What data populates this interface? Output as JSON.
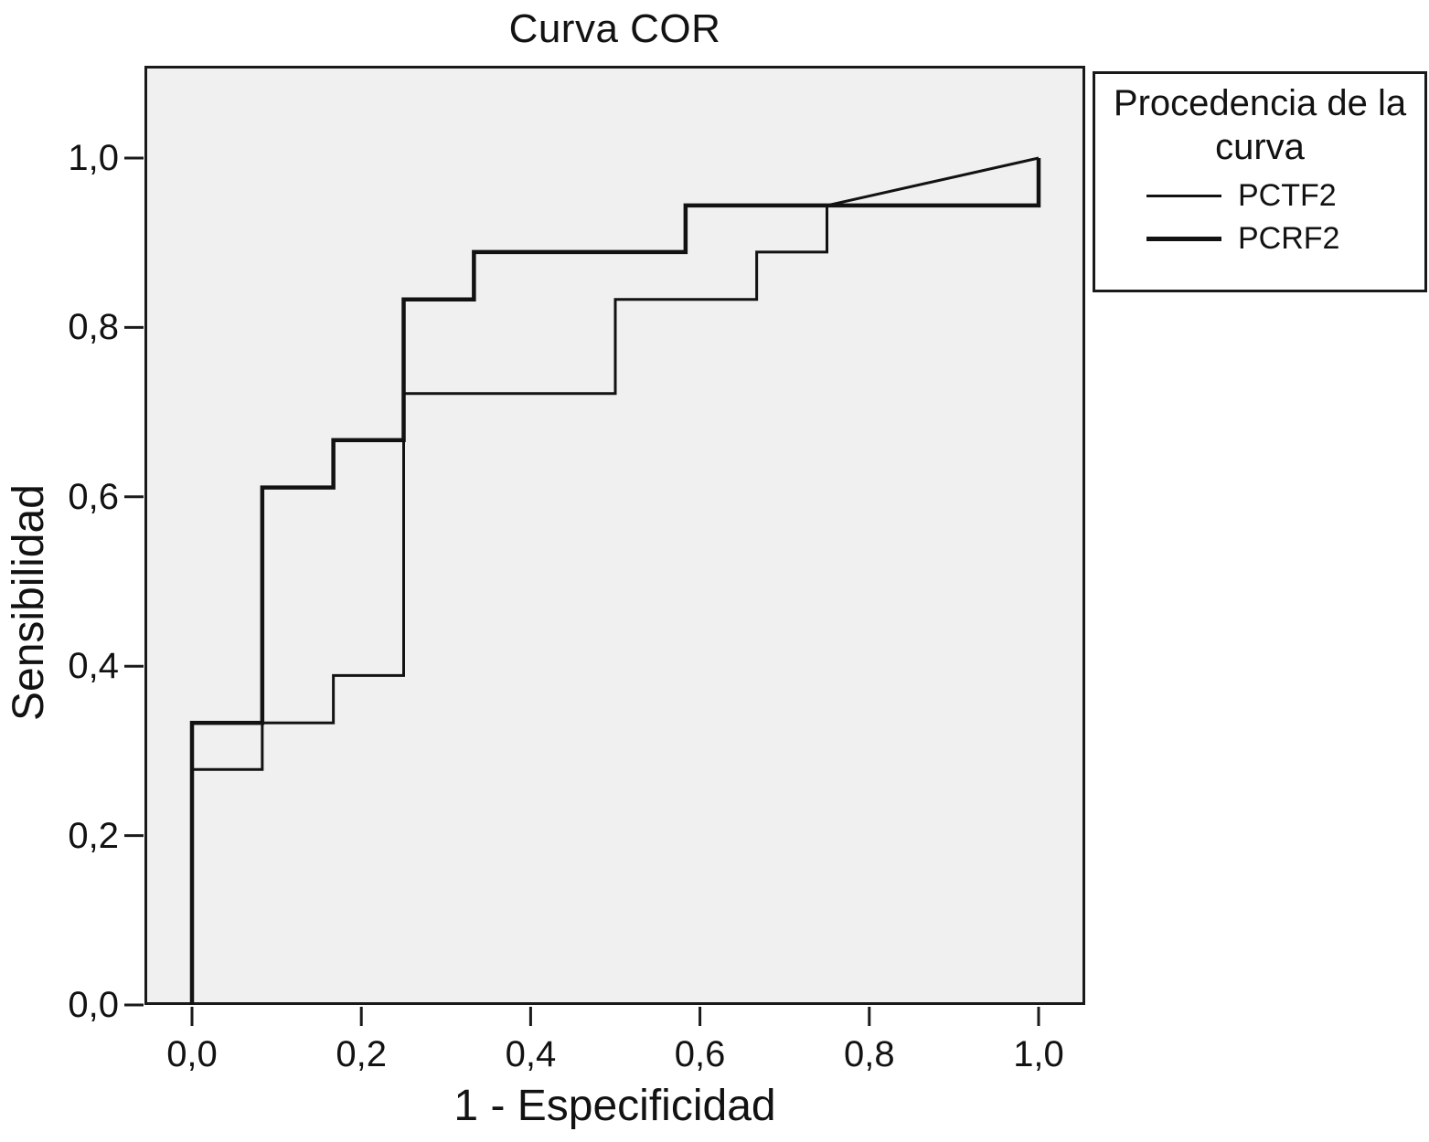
{
  "title": "Curva COR",
  "colors": {
    "line": "#121212",
    "frame": "#1a1a1a",
    "plot_background": "#f0f0f0",
    "page_background": "#ffffff",
    "text": "#121212"
  },
  "axes": {
    "x": {
      "title": "1 - Especificidad",
      "tick_labels": [
        "0,0",
        "0,2",
        "0,4",
        "0,6",
        "0,8",
        "1,0"
      ]
    },
    "y": {
      "title": "Sensibilidad",
      "tick_labels": [
        "0,0",
        "0,2",
        "0,4",
        "0,6",
        "0,8",
        "1,0"
      ]
    }
  },
  "legend": {
    "title_line1": "Procedencia de la",
    "title_line2": "curva",
    "entries": [
      {
        "label": "PCTF2",
        "weight": "thin"
      },
      {
        "label": "PCRF2",
        "weight": "thick"
      }
    ]
  },
  "chart_data": {
    "type": "line",
    "subtype": "roc-step-curves",
    "title": "Curva COR",
    "xlabel": "1 - Especificidad",
    "ylabel": "Sensibilidad",
    "xlim": [
      0,
      1
    ],
    "ylim": [
      0,
      1
    ],
    "x_ticks": [
      0.0,
      0.2,
      0.4,
      0.6,
      0.8,
      1.0
    ],
    "y_ticks": [
      0.0,
      0.2,
      0.4,
      0.6,
      0.8,
      1.0
    ],
    "grid": false,
    "legend_title": "Procedencia de la curva",
    "legend_position": "outside-top-right",
    "series": [
      {
        "name": "PCTF2",
        "weight": "thin",
        "points": [
          [
            0,
            0
          ],
          [
            0,
            0.278
          ],
          [
            0.083,
            0.278
          ],
          [
            0.083,
            0.333
          ],
          [
            0.167,
            0.333
          ],
          [
            0.167,
            0.389
          ],
          [
            0.25,
            0.389
          ],
          [
            0.25,
            0.722
          ],
          [
            0.5,
            0.722
          ],
          [
            0.5,
            0.833
          ],
          [
            0.667,
            0.833
          ],
          [
            0.667,
            0.889
          ],
          [
            0.75,
            0.889
          ],
          [
            0.75,
            0.944
          ],
          [
            1.0,
            1.0
          ]
        ]
      },
      {
        "name": "PCRF2",
        "weight": "thick",
        "points": [
          [
            0,
            0
          ],
          [
            0,
            0.333
          ],
          [
            0.083,
            0.333
          ],
          [
            0.083,
            0.611
          ],
          [
            0.167,
            0.611
          ],
          [
            0.167,
            0.667
          ],
          [
            0.25,
            0.667
          ],
          [
            0.25,
            0.833
          ],
          [
            0.333,
            0.833
          ],
          [
            0.333,
            0.889
          ],
          [
            0.583,
            0.889
          ],
          [
            0.583,
            0.944
          ],
          [
            1.0,
            0.944
          ],
          [
            1.0,
            1.0
          ]
        ]
      }
    ]
  }
}
